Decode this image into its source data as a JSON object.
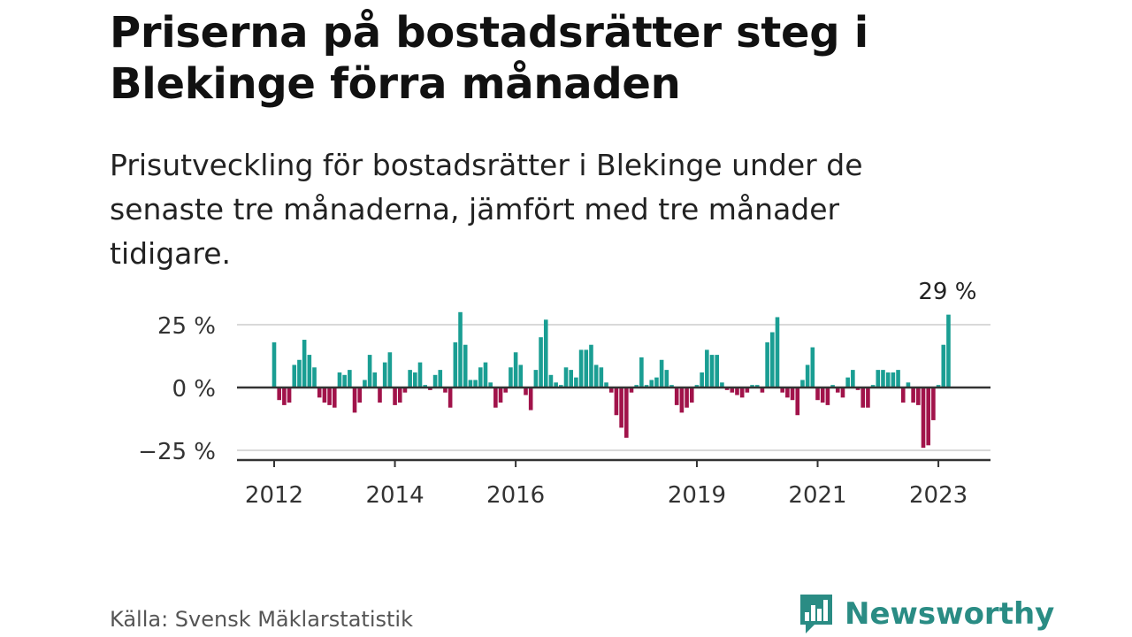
{
  "title": "Priserna på bostadsrätter steg i Blekinge förra månaden",
  "subtitle": "Prisutveckling för bostadsrätter i Blekinge under de senaste tre månaderna, jämfört med tre månader tidigare.",
  "source": "Källa: Svensk Mäklarstatistik",
  "brand": {
    "name": "Newsworthy",
    "logo_icon": "bar-chart-speech-bubble-icon",
    "color": "#2a8c84"
  },
  "chart_data": {
    "type": "bar",
    "x_start": "2012-01",
    "x_ticks": [
      "2012",
      "2014",
      "2016",
      "2019",
      "2021",
      "2023"
    ],
    "y_ticks": [
      "25 %",
      "0 %",
      "−25 %"
    ],
    "y_tick_values": [
      25,
      0,
      -25
    ],
    "ylim": [
      -29,
      31
    ],
    "grid": true,
    "colors": {
      "positive": "#1a9e93",
      "negative": "#a1134a"
    },
    "last_label": "29 %",
    "values": [
      18,
      -5,
      -7,
      -6,
      9,
      11,
      19,
      13,
      8,
      -4,
      -6,
      -7,
      -8,
      6,
      5,
      7,
      -10,
      -6,
      3,
      13,
      6,
      -6,
      10,
      14,
      -7,
      -6,
      -2,
      7,
      6,
      10,
      1,
      -1,
      5,
      7,
      -2,
      -8,
      18,
      30,
      17,
      3,
      3,
      8,
      10,
      2,
      -8,
      -6,
      -2,
      8,
      14,
      9,
      -3,
      -9,
      7,
      20,
      27,
      5,
      2,
      1,
      8,
      7,
      4,
      15,
      15,
      17,
      9,
      8,
      2,
      -2,
      -11,
      -16,
      -20,
      -2,
      1,
      12,
      1,
      3,
      4,
      11,
      7,
      1,
      -7,
      -10,
      -8,
      -6,
      1,
      6,
      15,
      13,
      13,
      2,
      -1,
      -2,
      -3,
      -4,
      -2,
      1,
      1,
      -2,
      18,
      22,
      28,
      -2,
      -4,
      -5,
      -11,
      3,
      9,
      16,
      -5,
      -6,
      -7,
      1,
      -2,
      -4,
      4,
      7,
      -1,
      -8,
      -8,
      1,
      7,
      7,
      6,
      6,
      7,
      -6,
      2,
      -6,
      -7,
      -24,
      -23,
      -13,
      1,
      17,
      29
    ]
  }
}
